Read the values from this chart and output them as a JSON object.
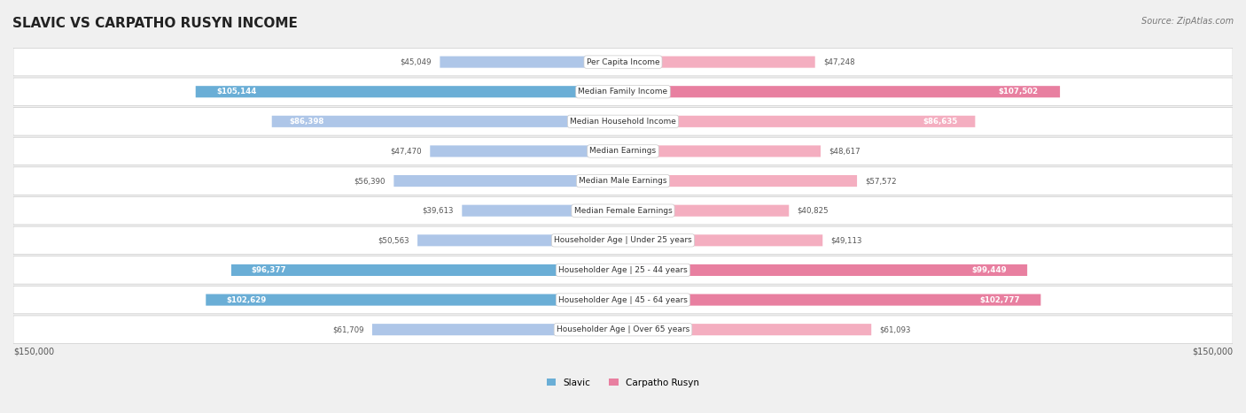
{
  "title": "SLAVIC VS CARPATHO RUSYN INCOME",
  "source": "Source: ZipAtlas.com",
  "categories": [
    "Per Capita Income",
    "Median Family Income",
    "Median Household Income",
    "Median Earnings",
    "Median Male Earnings",
    "Median Female Earnings",
    "Householder Age | Under 25 years",
    "Householder Age | 25 - 44 years",
    "Householder Age | 45 - 64 years",
    "Householder Age | Over 65 years"
  ],
  "slavic_values": [
    45049,
    105144,
    86398,
    47470,
    56390,
    39613,
    50563,
    96377,
    102629,
    61709
  ],
  "rusyn_values": [
    47248,
    107502,
    86635,
    48617,
    57572,
    40825,
    49113,
    99449,
    102777,
    61093
  ],
  "slavic_labels": [
    "$45,049",
    "$105,144",
    "$86,398",
    "$47,470",
    "$56,390",
    "$39,613",
    "$50,563",
    "$96,377",
    "$102,629",
    "$61,709"
  ],
  "rusyn_labels": [
    "$47,248",
    "$107,502",
    "$86,635",
    "$48,617",
    "$57,572",
    "$40,825",
    "$49,113",
    "$99,449",
    "$102,777",
    "$61,093"
  ],
  "slavic_color_light": "#aec6e8",
  "slavic_color_dark": "#6aaed6",
  "rusyn_color_light": "#f4aec0",
  "rusyn_color_dark": "#e87fa0",
  "max_value": 150000,
  "background_color": "#f0f0f0",
  "row_bg_color": "#ffffff",
  "label_inside_threshold": 80000,
  "slavic_inside_color": "#ffffff",
  "slavic_outside_color": "#555555",
  "rusyn_inside_color": "#ffffff",
  "rusyn_outside_color": "#555555"
}
